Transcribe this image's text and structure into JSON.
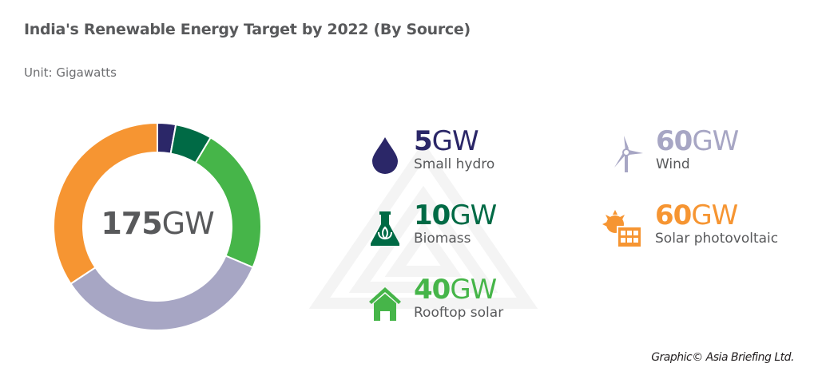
{
  "title": "India's Renewable Energy Target by 2022 (By Source)",
  "subtitle": "Unit: Gigawatts",
  "credit": "Graphic© Asia Briefing Ltd.",
  "chart_data": {
    "type": "pie",
    "donut": true,
    "center_label": {
      "number": "175",
      "unit": "GW"
    },
    "total": 175,
    "unit": "GW",
    "slices": [
      {
        "name": "Small hydro",
        "value": 5,
        "number": "5",
        "unit": "GW",
        "color": "#2b2768",
        "icon": "water-drop-icon"
      },
      {
        "name": "Biomass",
        "value": 10,
        "number": "10",
        "unit": "GW",
        "color": "#006a45",
        "icon": "flask-leaf-icon"
      },
      {
        "name": "Rooftop solar",
        "value": 40,
        "number": "40",
        "unit": "GW",
        "color": "#46b549",
        "icon": "house-icon"
      },
      {
        "name": "Wind",
        "value": 60,
        "number": "60",
        "unit": "GW",
        "color": "#a7a6c4",
        "icon": "wind-turbine-icon"
      },
      {
        "name": "Solar photovoltaic",
        "value": 60,
        "number": "60",
        "unit": "GW",
        "color": "#f69532",
        "icon": "solar-panel-icon"
      }
    ]
  }
}
